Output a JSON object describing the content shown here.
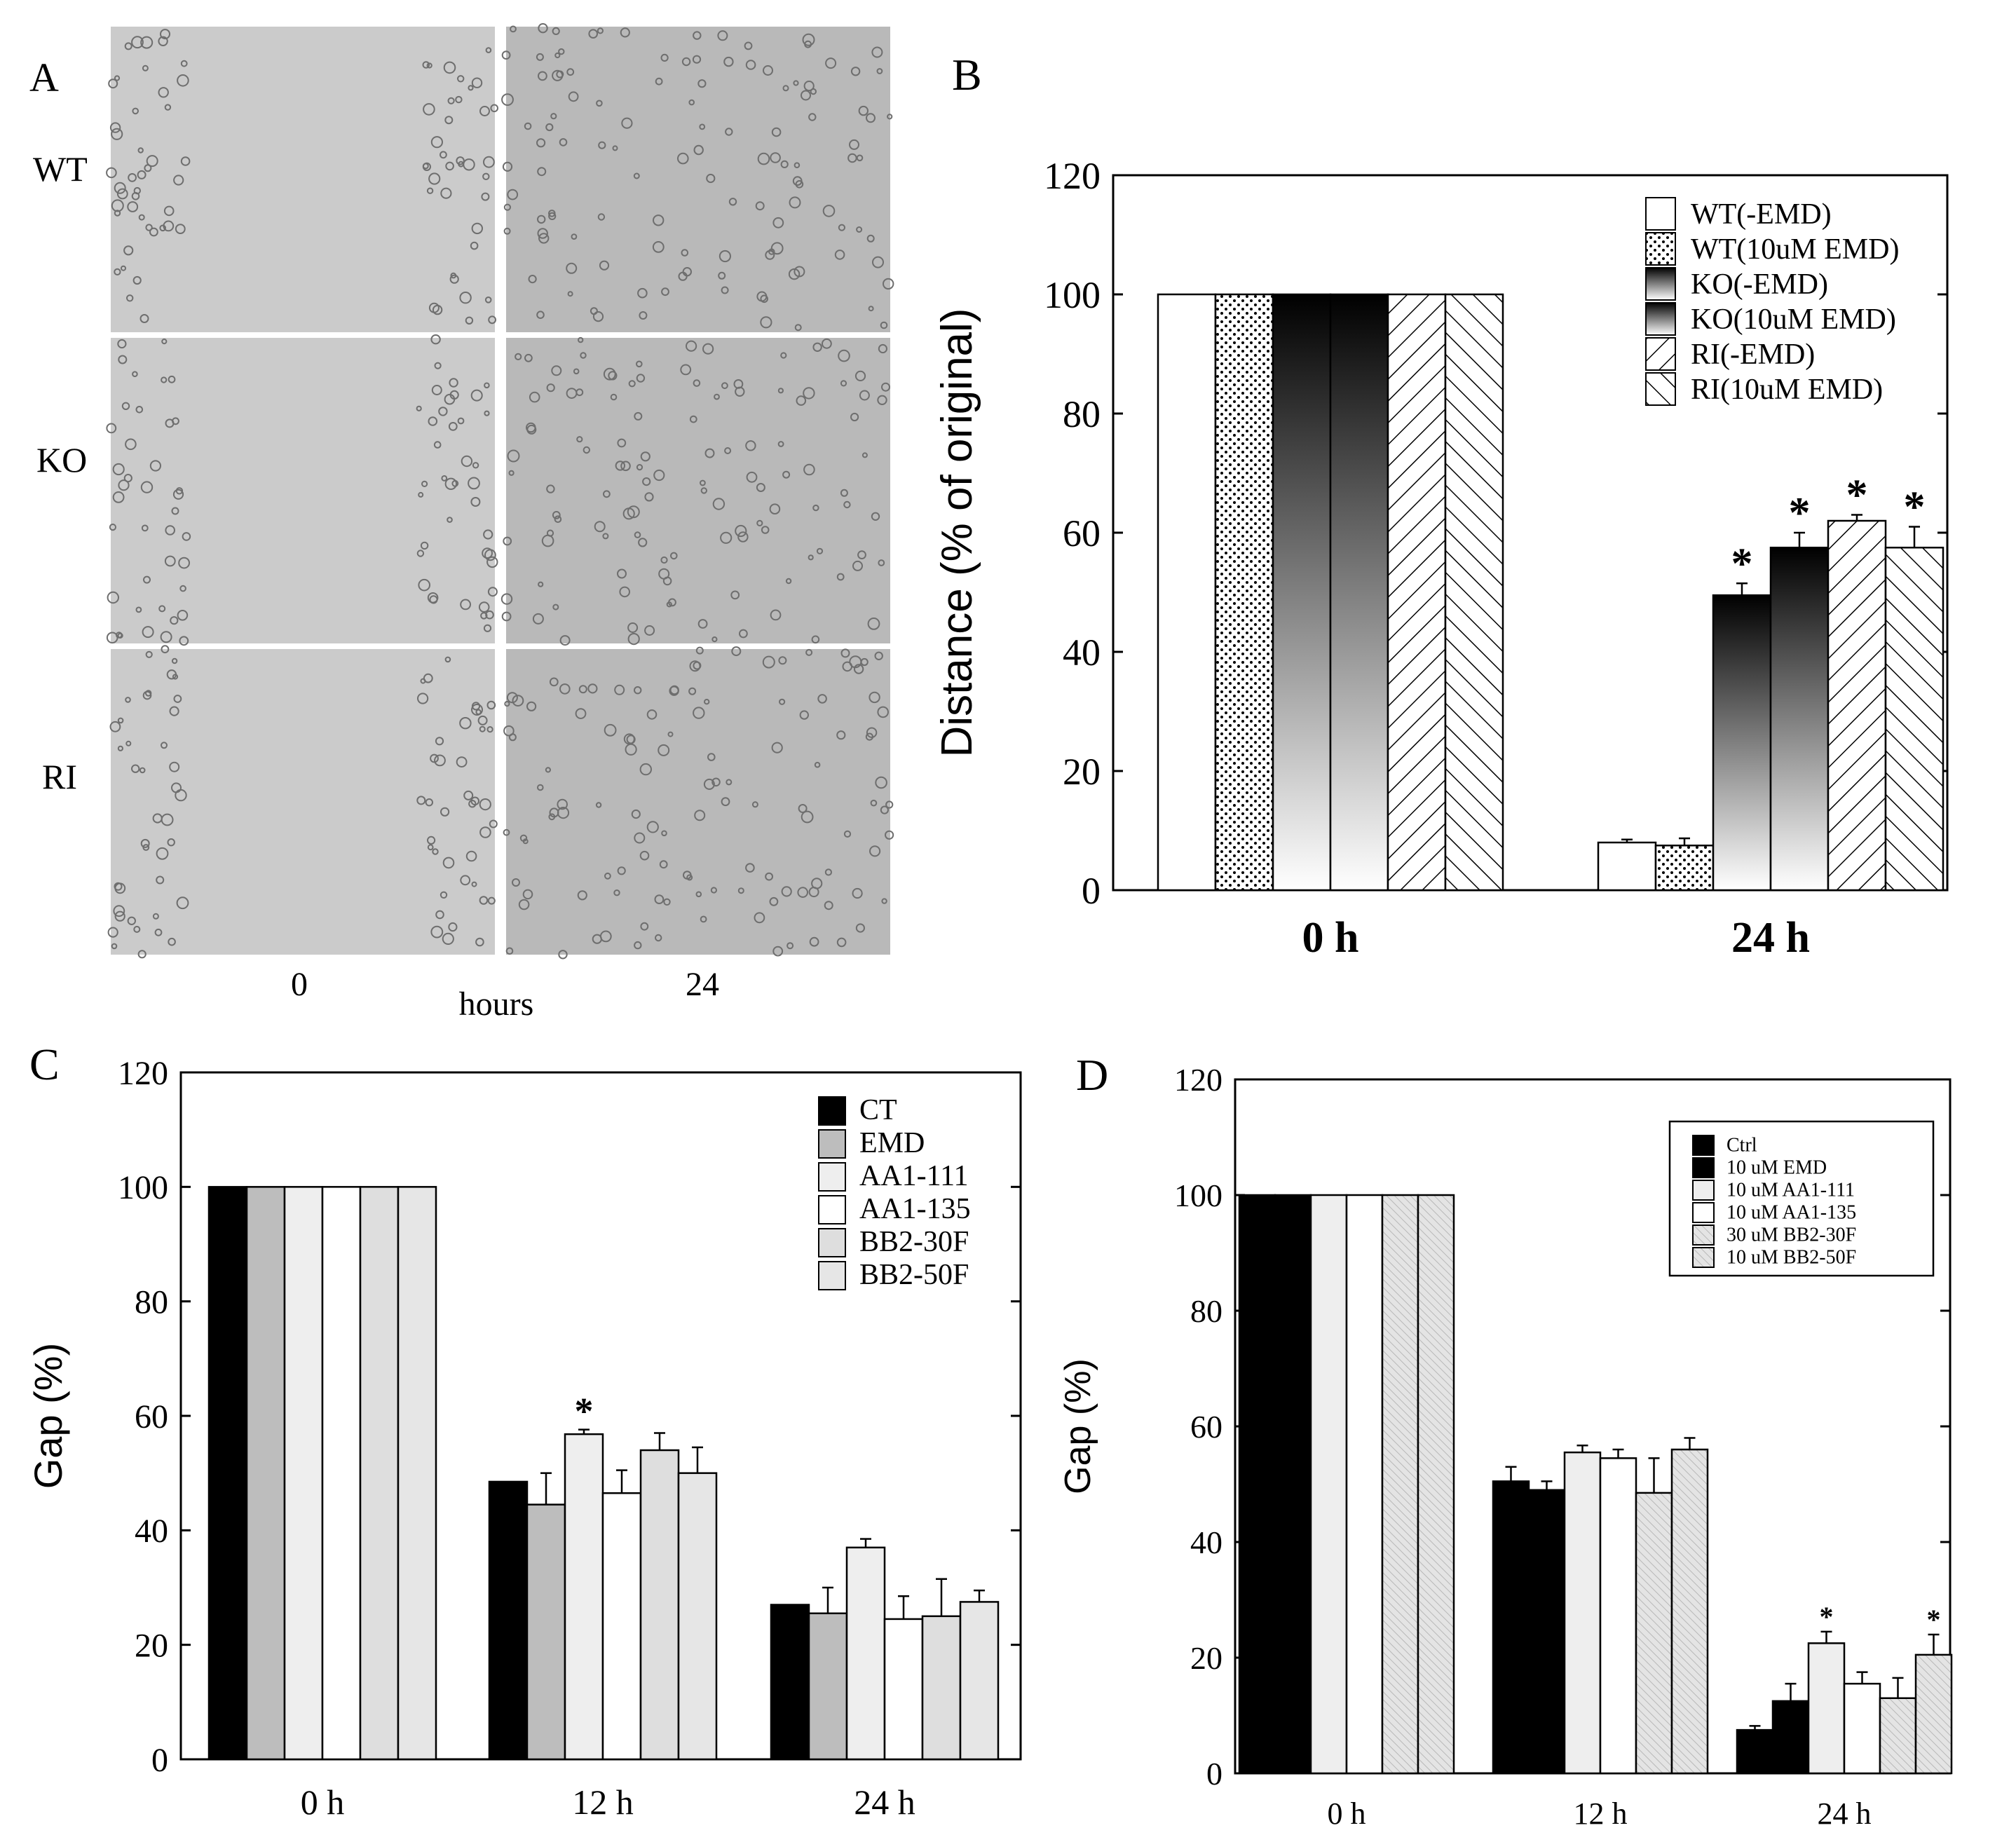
{
  "panel_a": {
    "letter": "A",
    "row_labels": [
      "WT",
      "KO",
      "RI"
    ],
    "col_labels": [
      "0",
      "24"
    ],
    "axis_label": "hours"
  },
  "chart_data": [
    {
      "panel": "B",
      "type": "bar",
      "categories": [
        "0 h",
        "24 h"
      ],
      "ylabel": "Distance (% of original)",
      "ylim": [
        0,
        120
      ],
      "yticks": [
        0,
        20,
        40,
        60,
        80,
        100,
        120
      ],
      "legend_position": "top-right",
      "series": [
        {
          "name": "WT(-EMD)",
          "values": [
            100,
            8
          ],
          "errors": [
            0,
            0.5
          ],
          "significant": [
            false,
            false
          ],
          "fill": "white"
        },
        {
          "name": "WT(10uM EMD)",
          "values": [
            100,
            7.5
          ],
          "errors": [
            0,
            1.2
          ],
          "significant": [
            false,
            false
          ],
          "fill": "dots"
        },
        {
          "name": "KO(-EMD)",
          "values": [
            100,
            49.5
          ],
          "errors": [
            0,
            2
          ],
          "significant": [
            false,
            true
          ],
          "fill": "gradient"
        },
        {
          "name": "KO(10uM EMD)",
          "values": [
            100,
            57.5
          ],
          "errors": [
            0,
            2.5
          ],
          "significant": [
            false,
            true
          ],
          "fill": "gradient"
        },
        {
          "name": "RI(-EMD)",
          "values": [
            100,
            62
          ],
          "errors": [
            0,
            1
          ],
          "significant": [
            false,
            true
          ],
          "fill": "hatch-back"
        },
        {
          "name": "RI(10uM EMD)",
          "values": [
            100,
            57.5
          ],
          "errors": [
            0,
            3.5
          ],
          "significant": [
            false,
            true
          ],
          "fill": "hatch-forward"
        }
      ]
    },
    {
      "panel": "C",
      "type": "bar",
      "categories": [
        "0 h",
        "12 h",
        "24  h"
      ],
      "ylabel": "Gap (%)",
      "ylim": [
        0,
        120
      ],
      "yticks": [
        0,
        20,
        40,
        60,
        80,
        100,
        120
      ],
      "legend_position": "top-right",
      "series": [
        {
          "name": "CT",
          "values": [
            100,
            48.5,
            27
          ],
          "errors": [
            0,
            0,
            0
          ],
          "significant": [
            false,
            false,
            false
          ],
          "color": "#000000"
        },
        {
          "name": "EMD",
          "values": [
            100,
            44.5,
            25.5
          ],
          "errors": [
            0,
            5.5,
            4.5
          ],
          "significant": [
            false,
            false,
            false
          ],
          "color": "#bdbdbd"
        },
        {
          "name": "AA1-111",
          "values": [
            100,
            56.8,
            37
          ],
          "errors": [
            0,
            0.8,
            1.5
          ],
          "significant": [
            false,
            true,
            false
          ],
          "color": "#eeeeee"
        },
        {
          "name": "AA1-135",
          "values": [
            100,
            46.5,
            24.5
          ],
          "errors": [
            0,
            4,
            4
          ],
          "significant": [
            false,
            false,
            false
          ],
          "color": "#ffffff"
        },
        {
          "name": "BB2-30F",
          "values": [
            100,
            54,
            25
          ],
          "errors": [
            0,
            3,
            6.5
          ],
          "significant": [
            false,
            false,
            false
          ],
          "color": "#dedede"
        },
        {
          "name": "BB2-50F",
          "values": [
            100,
            50,
            27.5
          ],
          "errors": [
            0,
            4.5,
            2
          ],
          "significant": [
            false,
            false,
            false
          ],
          "color": "#e6e6e6"
        }
      ]
    },
    {
      "panel": "D",
      "type": "bar",
      "categories": [
        "0 h",
        "12 h",
        "24 h"
      ],
      "ylabel": "Gap (%)",
      "ylim": [
        0,
        120
      ],
      "yticks": [
        0,
        20,
        40,
        60,
        80,
        100,
        120
      ],
      "legend_position": "top-right",
      "series": [
        {
          "name": "Ctrl",
          "values": [
            100,
            50.5,
            7.5
          ],
          "errors": [
            0,
            2.5,
            0.7
          ],
          "significant": [
            false,
            false,
            false
          ],
          "color": "#000000"
        },
        {
          "name": "10 uM EMD",
          "values": [
            100,
            49,
            12.5
          ],
          "errors": [
            0,
            1.5,
            3
          ],
          "significant": [
            false,
            false,
            false
          ],
          "color": "#000000"
        },
        {
          "name": "10 uM AA1-111",
          "values": [
            100,
            55.5,
            22.5
          ],
          "errors": [
            0,
            1.2,
            2
          ],
          "significant": [
            false,
            false,
            true
          ],
          "color": "#eeeeee"
        },
        {
          "name": "10 uM AA1-135",
          "values": [
            100,
            54.5,
            15.5
          ],
          "errors": [
            0,
            1.5,
            2
          ],
          "significant": [
            false,
            false,
            false
          ],
          "color": "#ffffff"
        },
        {
          "name": "30 uM BB2-30F",
          "values": [
            100,
            48.5,
            13
          ],
          "errors": [
            0,
            6,
            3.5
          ],
          "significant": [
            false,
            false,
            false
          ],
          "color": "#d0d0d0"
        },
        {
          "name": "10 uM BB2-50F",
          "values": [
            100,
            56,
            20.5
          ],
          "errors": [
            0,
            2,
            3.5
          ],
          "significant": [
            false,
            false,
            true
          ],
          "color": "#d8d8d8"
        }
      ]
    }
  ]
}
